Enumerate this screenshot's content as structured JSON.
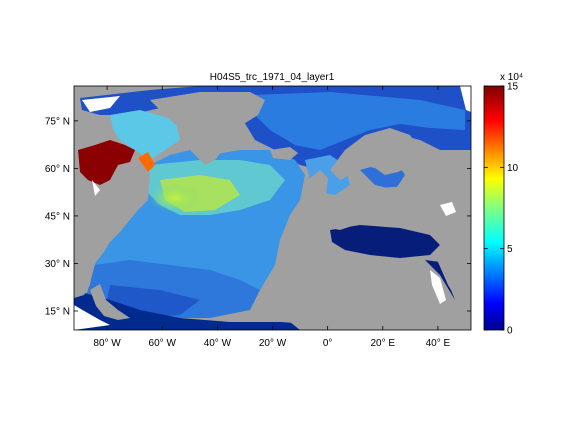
{
  "title": "H04S5_trc_1971_04_layer1",
  "map": {
    "lat_labels": [
      "75° N",
      "60° N",
      "45° N",
      "30° N",
      "15° N"
    ],
    "lon_labels": [
      "80° W",
      "60° W",
      "40° W",
      "20° W",
      "0°",
      "20° E",
      "40° E"
    ],
    "lat_values": [
      75,
      60,
      45,
      30,
      15
    ],
    "lon_values": [
      -80,
      -60,
      -40,
      -20,
      0,
      20,
      40
    ],
    "extent": {
      "lon_min": -92,
      "lon_max": 52,
      "lat_min": 9,
      "lat_max": 86
    },
    "land_color": "#a0a0a0",
    "missing_color": "#ffffff"
  },
  "colorbar": {
    "exponent_label": "x 10⁴",
    "ticks": [
      "0",
      "5",
      "10",
      "15"
    ],
    "tick_values": [
      0,
      5,
      10,
      15
    ],
    "range": [
      0,
      15
    ],
    "colormap": "jet"
  },
  "colors": {
    "land": "#a0a0a0",
    "ocean_low": "#00007f",
    "ocean_high": "#7f0000"
  }
}
